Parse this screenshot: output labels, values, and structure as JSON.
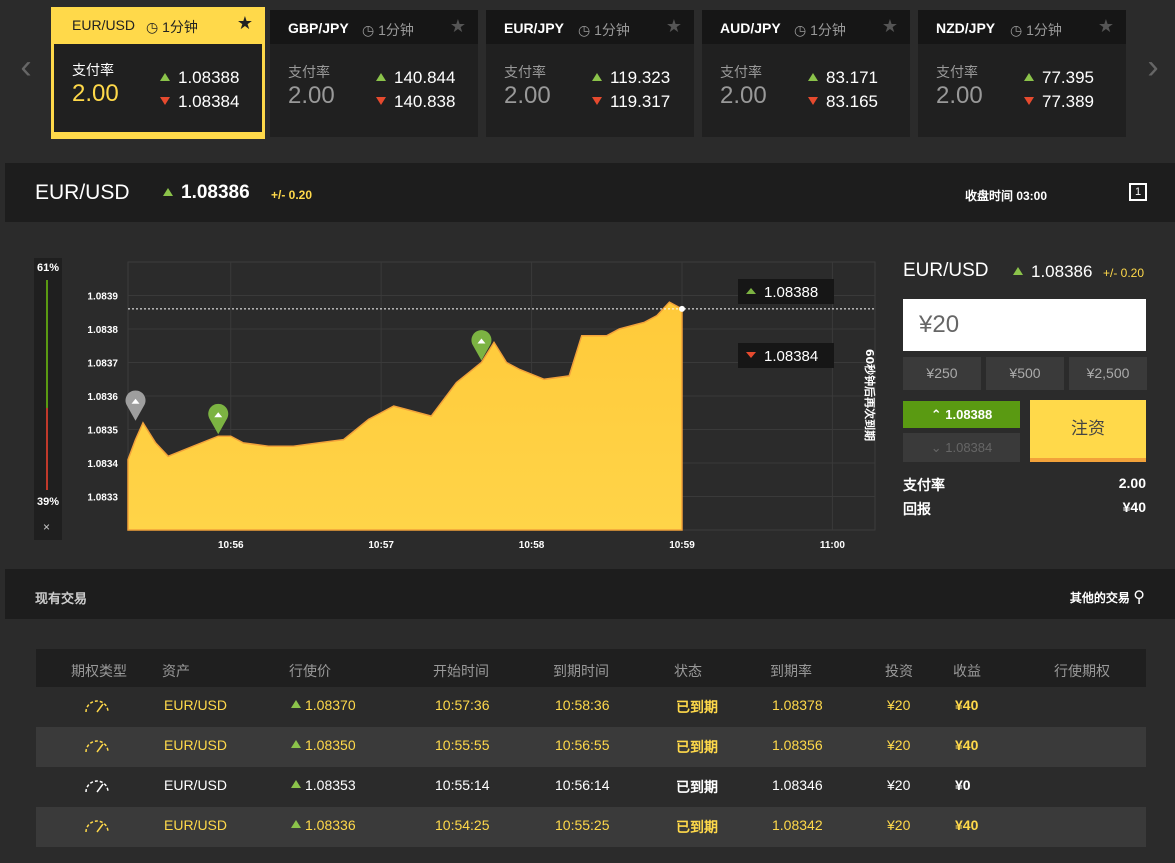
{
  "tickers": [
    {
      "symbol": "EUR/USD",
      "timer": "1分钟",
      "rate_label": "支付率",
      "rate": "2.00",
      "up": "1.08388",
      "down": "1.08384",
      "active": true
    },
    {
      "symbol": "GBP/JPY",
      "timer": "1分钟",
      "rate_label": "支付率",
      "rate": "2.00",
      "up": "140.844",
      "down": "140.838"
    },
    {
      "symbol": "EUR/JPY",
      "timer": "1分钟",
      "rate_label": "支付率",
      "rate": "2.00",
      "up": "119.323",
      "down": "119.317"
    },
    {
      "symbol": "AUD/JPY",
      "timer": "1分钟",
      "rate_label": "支付率",
      "rate": "2.00",
      "up": "83.171",
      "down": "83.165"
    },
    {
      "symbol": "NZD/JPY",
      "timer": "1分钟",
      "rate_label": "支付率",
      "rate": "2.00",
      "up": "77.395",
      "down": "77.389"
    }
  ],
  "nav": {
    "prev": "‹",
    "next": "›"
  },
  "asset_bar": {
    "name": "EUR/USD",
    "price": "1.08386",
    "change": "+/- 0.20",
    "close_time": "收盘时间 03:00",
    "icon": "1"
  },
  "sentiment": {
    "up_pct": "61%",
    "down_pct": "39%",
    "close": "×",
    "up_fraction": 0.61
  },
  "chart_data": {
    "type": "area",
    "x": [
      "10:55:19",
      "10:55:22",
      "10:55:25",
      "10:55:30",
      "10:55:35",
      "10:55:45",
      "10:55:55",
      "10:56:00",
      "10:56:05",
      "10:56:15",
      "10:56:25",
      "10:56:35",
      "10:56:45",
      "10:56:55",
      "10:57:05",
      "10:57:10",
      "10:57:20",
      "10:57:30",
      "10:57:35",
      "10:57:40",
      "10:57:45",
      "10:57:50",
      "10:57:55",
      "10:58:05",
      "10:58:15",
      "10:58:20",
      "10:58:30",
      "10:58:35",
      "10:58:45",
      "10:58:50",
      "10:58:55",
      "10:59:00"
    ],
    "values": [
      1.08341,
      1.08347,
      1.08352,
      1.08346,
      1.08342,
      1.08345,
      1.08348,
      1.08348,
      1.08346,
      1.08345,
      1.08345,
      1.08346,
      1.08347,
      1.08353,
      1.08357,
      1.08356,
      1.08354,
      1.08364,
      1.08367,
      1.0837,
      1.08376,
      1.0837,
      1.08368,
      1.08365,
      1.08366,
      1.08378,
      1.08378,
      1.0838,
      1.08382,
      1.08384,
      1.08388,
      1.08386
    ],
    "y_ticks": [
      "1.0833",
      "1.0834",
      "1.0835",
      "1.0836",
      "1.0837",
      "1.0838",
      "1.0839"
    ],
    "x_ticks": [
      "10:56",
      "10:57",
      "10:58",
      "10:59",
      "11:00"
    ],
    "ylim": [
      1.0832,
      1.084
    ],
    "grid": true,
    "current_line": "1.08386",
    "up_tag": "1.08388",
    "down_tag": "1.08384",
    "expiry_label": "60秒钟后再次到期",
    "markers": [
      {
        "x": "10:55:22",
        "value": 1.08352,
        "color": "#9e9e9e"
      },
      {
        "x": "10:55:55",
        "value": 1.08348,
        "color": "#7cb342"
      },
      {
        "x": "10:57:40",
        "value": 1.0837,
        "color": "#7cb342"
      }
    ]
  },
  "trade": {
    "name": "EUR/USD",
    "price": "1.08386",
    "change": "+/- 0.20",
    "amount": "¥20",
    "presets": [
      "¥250",
      "¥500",
      "¥2,500"
    ],
    "up": "1.08388",
    "down": "1.08384",
    "invest": "注资",
    "rate_label": "支付率",
    "rate": "2.00",
    "payout_label": "回报",
    "payout": "¥40"
  },
  "trades": {
    "title": "现有交易",
    "other": "其他的交易",
    "headers": [
      "期权类型",
      "资产",
      "行使价",
      "开始时间",
      "到期时间",
      "状态",
      "到期率",
      "投资",
      "收益",
      "行使期权"
    ],
    "rows": [
      {
        "asset": "EUR/USD",
        "strike": "1.08370",
        "start": "10:57:36",
        "end": "10:58:36",
        "status": "已到期",
        "rate": "1.08378",
        "invest": "¥20",
        "profit": "¥40",
        "win": true
      },
      {
        "asset": "EUR/USD",
        "strike": "1.08350",
        "start": "10:55:55",
        "end": "10:56:55",
        "status": "已到期",
        "rate": "1.08356",
        "invest": "¥20",
        "profit": "¥40",
        "win": true
      },
      {
        "asset": "EUR/USD",
        "strike": "1.08353",
        "start": "10:55:14",
        "end": "10:56:14",
        "status": "已到期",
        "rate": "1.08346",
        "invest": "¥20",
        "profit": "¥0",
        "win": false
      },
      {
        "asset": "EUR/USD",
        "strike": "1.08336",
        "start": "10:54:25",
        "end": "10:55:25",
        "status": "已到期",
        "rate": "1.08342",
        "invest": "¥20",
        "profit": "¥40",
        "win": true
      }
    ]
  }
}
